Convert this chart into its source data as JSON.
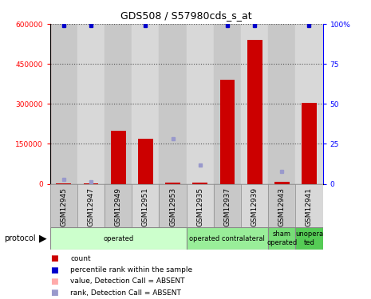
{
  "title": "GDS508 / S57980cds_s_at",
  "samples": [
    "GSM12945",
    "GSM12947",
    "GSM12949",
    "GSM12951",
    "GSM12953",
    "GSM12935",
    "GSM12937",
    "GSM12939",
    "GSM12943",
    "GSM12941"
  ],
  "counts": [
    3000,
    2000,
    200000,
    170000,
    5000,
    5000,
    390000,
    540000,
    8000,
    305000
  ],
  "percentile_ranks_pct": [
    99,
    99,
    null,
    99,
    null,
    null,
    99,
    99,
    null,
    99
  ],
  "absent_ranks_pct": [
    3,
    1.5,
    null,
    null,
    28,
    12,
    null,
    null,
    8,
    null
  ],
  "ylim_left": [
    0,
    600000
  ],
  "ylim_right": [
    0,
    100
  ],
  "yticks_left": [
    0,
    150000,
    300000,
    450000,
    600000
  ],
  "yticks_right": [
    0,
    25,
    50,
    75,
    100
  ],
  "ytick_labels_left": [
    "0",
    "150000",
    "300000",
    "450000",
    "600000"
  ],
  "ytick_labels_right": [
    "0",
    "25",
    "50",
    "75",
    "100%"
  ],
  "bar_color": "#cc0000",
  "rank_color": "#0000cc",
  "absent_value_color": "#ffaaaa",
  "absent_rank_color": "#9999cc",
  "col_bg_even": "#d0d0d0",
  "col_bg_odd": "#d0d0d0",
  "plot_bg": "#ffffff",
  "group_defs": [
    {
      "label": "operated",
      "start": 0,
      "end": 4,
      "color": "#ccffcc"
    },
    {
      "label": "operated contralateral",
      "start": 5,
      "end": 7,
      "color": "#99ee99"
    },
    {
      "label": "sham\noperated",
      "start": 8,
      "end": 8,
      "color": "#77dd77"
    },
    {
      "label": "unopera\nted",
      "start": 9,
      "end": 9,
      "color": "#55cc55"
    }
  ],
  "legend_items": [
    {
      "color": "#cc0000",
      "label": "count"
    },
    {
      "color": "#0000cc",
      "label": "percentile rank within the sample"
    },
    {
      "color": "#ffaaaa",
      "label": "value, Detection Call = ABSENT"
    },
    {
      "color": "#9999cc",
      "label": "rank, Detection Call = ABSENT"
    }
  ]
}
